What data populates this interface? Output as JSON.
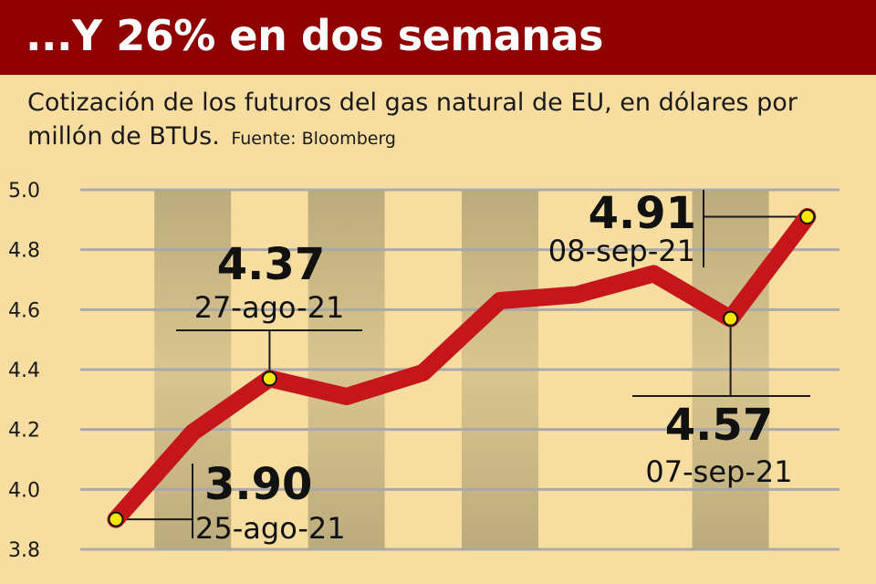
{
  "header": {
    "title": "...Y 26% en dos semanas",
    "subtitle": "Cotización de los futuros del gas natural de EU, en dólares por millón de BTUs.",
    "source": "Fuente: Bloomberg"
  },
  "colors": {
    "title_bar": "#8f0000",
    "background": "#f7dea0",
    "line": "#c5161c",
    "highlight_point": "#ffe600",
    "shade_band": "#b5a679"
  },
  "chart_data": {
    "type": "line",
    "title": "...Y 26% en dos semanas",
    "xlabel": "",
    "ylabel": "",
    "ylim": [
      3.8,
      5.0
    ],
    "yticks": [
      "5.0",
      "4.8",
      "4.6",
      "4.4",
      "4.2",
      "4.0",
      "3.8"
    ],
    "grid": true,
    "series": [
      {
        "values": [
          3.9,
          4.19,
          4.37,
          4.31,
          4.39,
          4.63,
          4.65,
          4.72,
          4.57,
          4.91
        ]
      }
    ],
    "annotations": [
      {
        "index": 0,
        "value": "3.90",
        "date": "25-ago-21"
      },
      {
        "index": 2,
        "value": "4.37",
        "date": "27-ago-21"
      },
      {
        "index": 9,
        "value": "4.91",
        "date": "08-sep-21"
      },
      {
        "index": 8,
        "value": "4.57",
        "date": "07-sep-21"
      }
    ]
  }
}
